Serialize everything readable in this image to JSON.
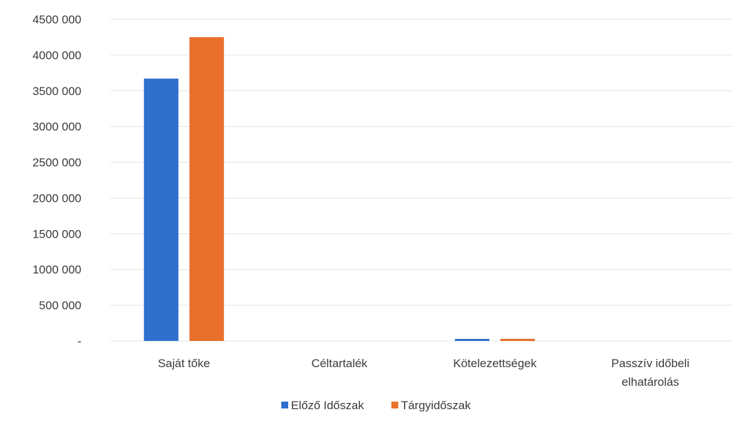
{
  "chart_data": {
    "type": "bar",
    "categories": [
      [
        "Saját tőke"
      ],
      [
        "Céltartalék"
      ],
      [
        "Kötelezettségek"
      ],
      [
        "Passzív időbeli",
        "elhatárolás"
      ]
    ],
    "series": [
      {
        "name": "Előző Időszak",
        "color": "#2f6fce",
        "values": [
          3670000,
          0,
          20000,
          0
        ]
      },
      {
        "name": "Tárgyidőszak",
        "color": "#e8702a",
        "values": [
          4250000,
          0,
          30000,
          0
        ]
      }
    ],
    "ylim": [
      0,
      4500000
    ],
    "yticks": [
      0,
      500000,
      1000000,
      1500000,
      2000000,
      2500000,
      3000000,
      3500000,
      4000000,
      4500000
    ],
    "ytick_labels": [
      "-",
      "500 000",
      "1000 000",
      "1500 000",
      "2000 000",
      "2500 000",
      "3000 000",
      "3500 000",
      "4000 000",
      "4500 000"
    ],
    "grid": true,
    "legend_position": "bottom-center",
    "title": "",
    "xlabel": "",
    "ylabel": ""
  }
}
